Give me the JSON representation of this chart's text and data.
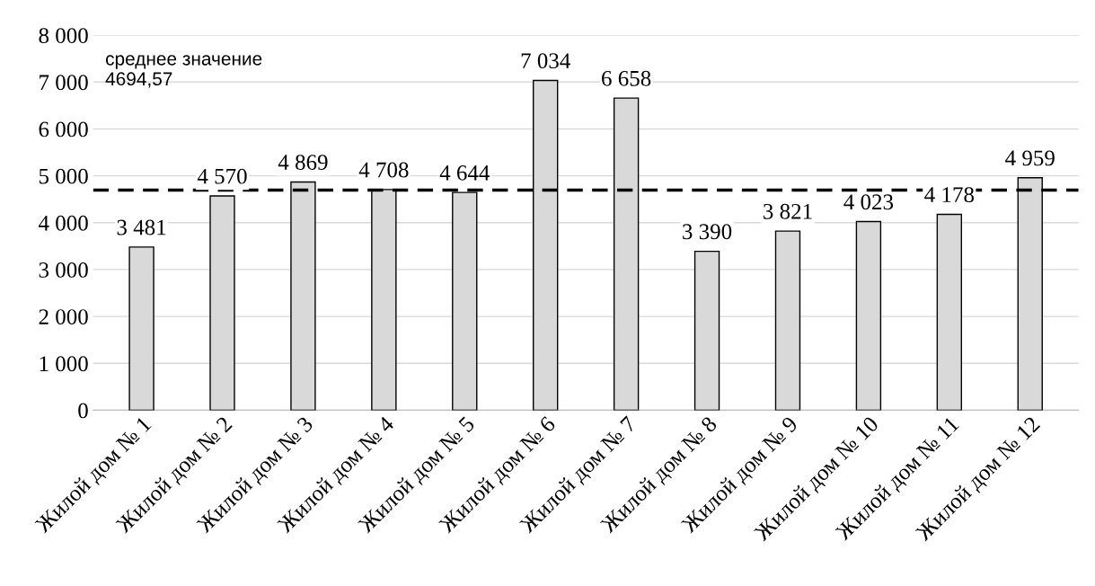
{
  "chart_data": {
    "type": "bar",
    "categories": [
      "Жилой дом № 1",
      "Жилой дом № 2",
      "Жилой дом № 3",
      "Жилой дом № 4",
      "Жилой дом № 5",
      "Жилой дом № 6",
      "Жилой дом № 7",
      "Жилой дом № 8",
      "Жилой дом № 9",
      "Жилой дом № 10",
      "Жилой дом № 11",
      "Жилой дом № 12"
    ],
    "values": [
      3481,
      4570,
      4869,
      4708,
      4644,
      7034,
      6658,
      3390,
      3821,
      4023,
      4178,
      4959
    ],
    "value_labels": [
      "3 481",
      "4 570",
      "4 869",
      "4 708",
      "4 644",
      "7 034",
      "6 658",
      "3 390",
      "3 821",
      "4 023",
      "4 178",
      "4 959"
    ],
    "color": "#d9d9d9",
    "ylim": [
      0,
      8000
    ],
    "yticks": [
      {
        "value": 0,
        "label": "0"
      },
      {
        "value": 1000,
        "label": "1 000"
      },
      {
        "value": 2000,
        "label": "2 000"
      },
      {
        "value": 3000,
        "label": "3 000"
      },
      {
        "value": 4000,
        "label": "4 000"
      },
      {
        "value": 5000,
        "label": "5 000"
      },
      {
        "value": 6000,
        "label": "6 000"
      },
      {
        "value": 7000,
        "label": "7 000"
      },
      {
        "value": 8000,
        "label": "8 000"
      }
    ],
    "grid": "y",
    "ref_lines": [
      {
        "axis": "y",
        "value": 4694.57,
        "label": "среднее значение\n4694,57",
        "color": "#000000",
        "line_style": "dashed"
      }
    ]
  }
}
